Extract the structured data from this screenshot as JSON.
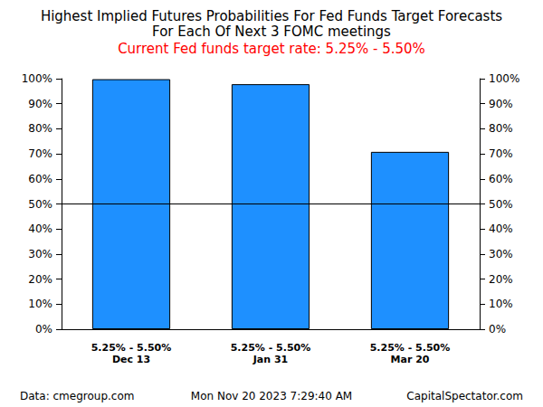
{
  "chart_data": {
    "type": "bar",
    "title": "Highest Implied Futures Probabilities For Fed Funds Target Forecasts\nFor Each Of Next 3 FOMC meetings",
    "subtitle": "Current Fed funds target rate: 5.25% - 5.50%",
    "categories": [
      "5.25% - 5.50%\nDec 13",
      "5.25% - 5.50%\nJan 31",
      "5.25% - 5.50%\nMar 20"
    ],
    "values": [
      99.8,
      97.8,
      70.8
    ],
    "color": "#1e90ff",
    "ylim": [
      0,
      100
    ],
    "yticks": [
      {
        "value": 0,
        "label": "0%"
      },
      {
        "value": 10,
        "label": "10%"
      },
      {
        "value": 20,
        "label": "20%"
      },
      {
        "value": 30,
        "label": "30%"
      },
      {
        "value": 40,
        "label": "40%"
      },
      {
        "value": 50,
        "label": "50%"
      },
      {
        "value": 60,
        "label": "60%"
      },
      {
        "value": 70,
        "label": "70%"
      },
      {
        "value": 80,
        "label": "80%"
      },
      {
        "value": 90,
        "label": "90%"
      },
      {
        "value": 100,
        "label": "100%"
      }
    ],
    "y2lim": [
      0,
      100
    ],
    "y2ticks": [
      {
        "value": 0,
        "label": "0%"
      },
      {
        "value": 10,
        "label": "10%"
      },
      {
        "value": 20,
        "label": "20%"
      },
      {
        "value": 30,
        "label": "30%"
      },
      {
        "value": 40,
        "label": "40%"
      },
      {
        "value": 50,
        "label": "50%"
      },
      {
        "value": 60,
        "label": "60%"
      },
      {
        "value": 70,
        "label": "70%"
      },
      {
        "value": 80,
        "label": "80%"
      },
      {
        "value": 90,
        "label": "90%"
      },
      {
        "value": 100,
        "label": "100%"
      }
    ],
    "hline": 50,
    "grid": false,
    "source": "Data: cmegroup.com",
    "date": "Mon Nov 20 2023 7:29:40 AM",
    "credit": "CapitalSpectator.com"
  }
}
